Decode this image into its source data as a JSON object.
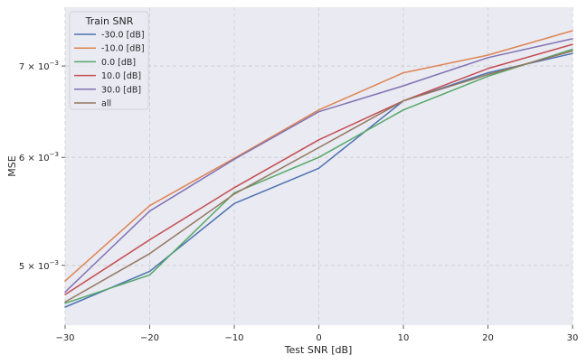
{
  "chart_data": {
    "type": "line",
    "title": "",
    "xlabel": "Test SNR [dB]",
    "ylabel": "MSE",
    "yscale": "log",
    "x": [
      -30,
      -20,
      -10,
      0,
      10,
      20,
      30
    ],
    "xlim": [
      -30,
      30
    ],
    "ylim": [
      0.00452,
      0.00773
    ],
    "xticks": [
      -30,
      -20,
      -10,
      0,
      10,
      20,
      30
    ],
    "xtick_labels": [
      "−30",
      "−20",
      "−10",
      "0",
      "10",
      "20",
      "30"
    ],
    "yticks": [
      0.005,
      0.006,
      0.007
    ],
    "ytick_base": "10",
    "ytick_exponent": "−3",
    "ytick_mantissas": [
      "5",
      "6",
      "7"
    ],
    "grid": true,
    "legend_title": "Train SNR",
    "legend_position": "top-left",
    "series": [
      {
        "name": "-30.0 [dB]",
        "color": "#4c72b0",
        "values": [
          0.00466,
          0.00495,
          0.00555,
          0.00589,
          0.0066,
          0.00692,
          0.00715
        ]
      },
      {
        "name": "-10.0 [dB]",
        "color": "#dd8452",
        "values": [
          0.00487,
          0.00553,
          0.00599,
          0.0065,
          0.00692,
          0.00713,
          0.00743
        ]
      },
      {
        "name": "0.0 [dB]",
        "color": "#55a868",
        "values": [
          0.00469,
          0.00492,
          0.00565,
          0.006,
          0.0065,
          0.00688,
          0.0072
        ]
      },
      {
        "name": "10.0 [dB]",
        "color": "#c44e52",
        "values": [
          0.00476,
          0.00522,
          0.0057,
          0.00618,
          0.0066,
          0.00697,
          0.00726
        ]
      },
      {
        "name": "30.0 [dB]",
        "color": "#8172b3",
        "values": [
          0.00478,
          0.00548,
          0.00598,
          0.00648,
          0.00677,
          0.0071,
          0.00733
        ]
      },
      {
        "name": "all",
        "color": "#937860",
        "values": [
          0.0047,
          0.0051,
          0.00564,
          0.0061,
          0.0066,
          0.0069,
          0.00718
        ]
      }
    ]
  }
}
